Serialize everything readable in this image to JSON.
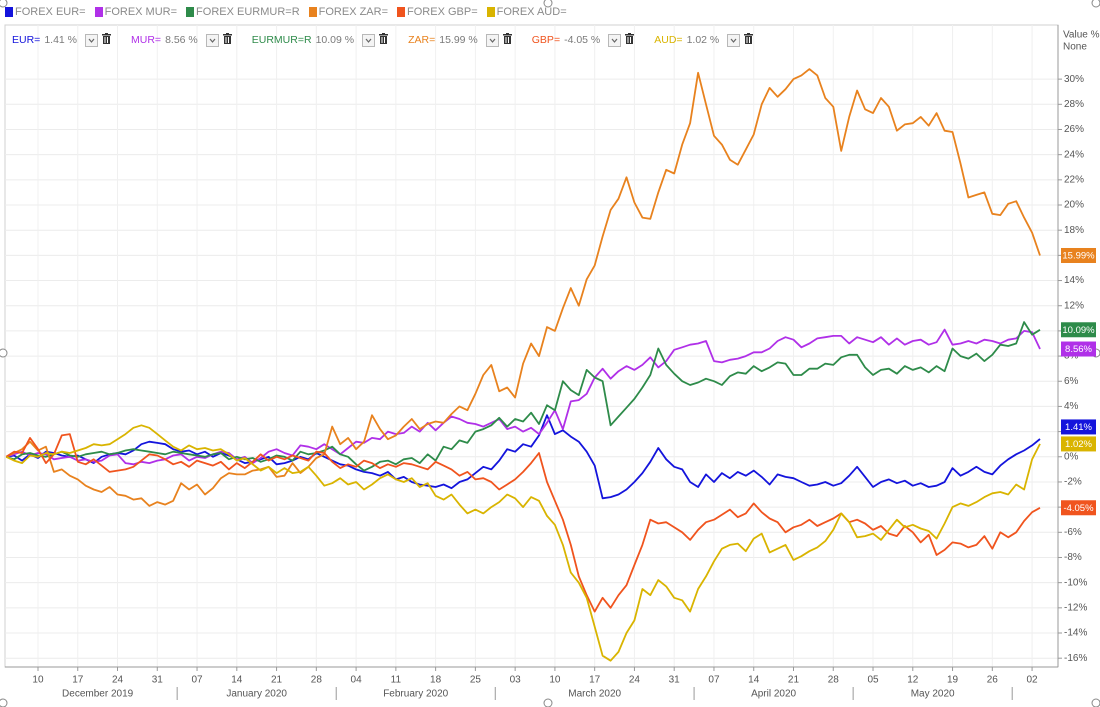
{
  "chart_data": {
    "type": "line",
    "y_axis_label": "Value %",
    "y_axis_sublabel": "None",
    "categories": [
      null,
      null,
      null,
      null,
      "10",
      null,
      null,
      null,
      null,
      "17",
      null,
      null,
      null,
      null,
      "24",
      null,
      null,
      null,
      null,
      "31",
      null,
      null,
      null,
      null,
      "07",
      null,
      null,
      null,
      null,
      "14",
      null,
      null,
      null,
      null,
      "21",
      null,
      null,
      null,
      null,
      "28",
      null,
      null,
      null,
      null,
      "04",
      null,
      null,
      null,
      null,
      "11",
      null,
      null,
      null,
      null,
      "18",
      null,
      null,
      null,
      null,
      "25",
      null,
      null,
      null,
      null,
      "03",
      null,
      null,
      null,
      null,
      "10",
      null,
      null,
      null,
      null,
      "17",
      null,
      null,
      null,
      null,
      "24",
      null,
      null,
      null,
      null,
      "31",
      null,
      null,
      null,
      null,
      "07",
      null,
      null,
      null,
      null,
      "14",
      null,
      null,
      null,
      null,
      "21",
      null,
      null,
      null,
      null,
      "28",
      null,
      null,
      null,
      null,
      "05",
      null,
      null,
      null,
      null,
      "12",
      null,
      null,
      null,
      null,
      "19",
      null,
      null,
      null,
      null,
      "26",
      null,
      null,
      null,
      null,
      "02",
      null
    ],
    "months": [
      "December 2019",
      "January 2020",
      "February 2020",
      "March 2020",
      "April 2020",
      "May 2020"
    ],
    "ylim": [
      -16.7,
      34.3
    ],
    "yticks": [
      {
        "value": -16,
        "label": "-16%"
      },
      {
        "value": -14,
        "label": "-14%"
      },
      {
        "value": -12,
        "label": "-12%"
      },
      {
        "value": -10,
        "label": "-10%"
      },
      {
        "value": -8,
        "label": "-8%"
      },
      {
        "value": -6,
        "label": "-6%"
      },
      {
        "value": -4,
        "label": "-4%"
      },
      {
        "value": -2,
        "label": "-2%"
      },
      {
        "value": 0,
        "label": "0%"
      },
      {
        "value": 2,
        "label": "2%"
      },
      {
        "value": 4,
        "label": "4%"
      },
      {
        "value": 6,
        "label": "6%"
      },
      {
        "value": 8,
        "label": "8%"
      },
      {
        "value": 10,
        "label": "10%"
      },
      {
        "value": 12,
        "label": "12%"
      },
      {
        "value": 14,
        "label": "14%"
      },
      {
        "value": 16,
        "label": "16%"
      },
      {
        "value": 18,
        "label": "18%"
      },
      {
        "value": 20,
        "label": "20%"
      },
      {
        "value": 22,
        "label": "22%"
      },
      {
        "value": 24,
        "label": "24%"
      },
      {
        "value": 26,
        "label": "26%"
      },
      {
        "value": 28,
        "label": "28%"
      },
      {
        "value": 30,
        "label": "30%"
      }
    ],
    "grid": true,
    "series": [
      {
        "name": "FOREX EUR=",
        "short_name": "EUR=",
        "change_label": "1.41 %",
        "value_label": "1.41%",
        "color": "#1414dc",
        "values": [
          0,
          0.1,
          -0.3,
          0.2,
          -0.1,
          0.4,
          0.3,
          0.1,
          0.0,
          0.1,
          -0.2,
          -0.5,
          0.0,
          0.2,
          0.3,
          0.2,
          0.5,
          1.0,
          1.2,
          1.1,
          1.0,
          0.6,
          0.4,
          0.5,
          0.2,
          0.4,
          0.0,
          0.3,
          0.1,
          -0.2,
          -0.5,
          -0.4,
          -0.2,
          0.0,
          -0.6,
          -0.5,
          -0.3,
          0.0,
          -0.2,
          0.3,
          0.0,
          -0.3,
          -0.6,
          -0.7,
          -1.0,
          -1.2,
          -1.3,
          -1.5,
          -1.2,
          -1.8,
          -1.6,
          -2.0,
          -2.2,
          -2.3,
          -2.4,
          -2.2,
          -2.5,
          -2.0,
          -1.8,
          -1.3,
          -0.8,
          -1.0,
          -0.3,
          0.6,
          0.4,
          1.0,
          0.8,
          1.7,
          3.3,
          1.8,
          2.1,
          1.6,
          1.2,
          0.4,
          -0.7,
          -3.3,
          -3.2,
          -3.0,
          -2.6,
          -2.0,
          -1.3,
          -0.4,
          0.7,
          -0.2,
          -0.8,
          -1.0,
          -2.0,
          -2.4,
          -1.4,
          -2.0,
          -1.3,
          -1.7,
          -1.2,
          -1.5,
          -1.1,
          -1.6,
          -2.2,
          -1.4,
          -1.6,
          -1.7,
          -2.0,
          -2.3,
          -2.2,
          -2.0,
          -2.3,
          -2.1,
          -1.5,
          -0.8,
          -1.6,
          -2.4,
          -2.0,
          -1.8,
          -2.1,
          -1.9,
          -2.3,
          -2.1,
          -2.4,
          -2.3,
          -2.0,
          -0.9,
          -1.5,
          -1.2,
          -0.8,
          -1.2,
          -1.4,
          -0.7,
          -0.2,
          0.2,
          0.5,
          0.9,
          1.41
        ]
      },
      {
        "name": "FOREX MUR=",
        "short_name": "MUR=",
        "change_label": "8.56 %",
        "value_label": "8.56%",
        "color": "#b030e8",
        "values": [
          0,
          0.2,
          0.4,
          0.1,
          0.3,
          0.2,
          -0.2,
          -0.1,
          0.0,
          -0.3,
          -0.2,
          -0.4,
          -0.3,
          0.1,
          0.2,
          -0.5,
          -0.6,
          -0.4,
          -0.5,
          -0.3,
          -0.2,
          0.1,
          0.2,
          -0.3,
          0.0,
          -0.1,
          0.2,
          0.4,
          0.3,
          -0.2,
          0.0,
          -0.5,
          -0.1,
          0.4,
          0.6,
          0.3,
          0.1,
          0.9,
          0.8,
          0.6,
          1.0,
          0.6,
          0.2,
          0.7,
          1.2,
          1.1,
          1.5,
          1.4,
          2.0,
          1.8,
          1.9,
          2.4,
          2.0,
          2.7,
          2.1,
          2.7,
          3.2,
          3.0,
          2.7,
          2.6,
          2.4,
          2.7,
          3.0,
          2.2,
          2.4,
          2.0,
          2.3,
          1.8,
          2.7,
          3.7,
          2.2,
          4.4,
          4.5,
          5.0,
          6.3,
          7.0,
          6.2,
          6.8,
          7.2,
          6.9,
          7.3,
          7.9,
          7.1,
          7.6,
          8.5,
          8.7,
          8.9,
          9.0,
          9.2,
          7.6,
          7.5,
          7.7,
          7.8,
          8.0,
          8.3,
          8.3,
          8.6,
          9.2,
          9.5,
          9.3,
          8.7,
          9.0,
          9.4,
          9.5,
          9.6,
          9.6,
          9.0,
          9.5,
          9.3,
          9.1,
          9.5,
          8.9,
          9.4,
          8.9,
          9.2,
          9.3,
          8.9,
          9.1,
          10.1,
          8.9,
          9.0,
          9.2,
          9.0,
          9.3,
          9.2,
          9.0,
          9.3,
          9.4,
          10.0,
          9.9,
          8.56
        ]
      },
      {
        "name": "FOREX EURMUR=R",
        "short_name": "EURMUR=R",
        "change_label": "10.09 %",
        "value_label": "10.09%",
        "color": "#2e8b4a",
        "values": [
          0,
          -0.2,
          0.2,
          0.3,
          0.1,
          0.0,
          0.2,
          0.4,
          0.1,
          0.0,
          0.2,
          0.3,
          0.4,
          0.2,
          0.3,
          0.5,
          0.6,
          0.5,
          0.4,
          0.3,
          0.2,
          0.4,
          0.3,
          0.2,
          0.1,
          0.0,
          0.2,
          0.3,
          -0.2,
          0.0,
          -0.2,
          -0.1,
          -0.4,
          -0.2,
          0.1,
          0.0,
          -0.3,
          0.4,
          0.2,
          0.3,
          0.5,
          0.8,
          0.2,
          0.0,
          -0.6,
          -1.1,
          -0.8,
          -0.4,
          -0.3,
          -0.6,
          -0.2,
          -0.1,
          -0.5,
          0.2,
          -0.3,
          0.8,
          0.6,
          1.3,
          1.1,
          2.0,
          2.2,
          2.5,
          3.1,
          2.4,
          3.0,
          2.8,
          3.5,
          2.6,
          4.1,
          3.7,
          6.0,
          5.3,
          4.9,
          6.9,
          6.3,
          6.0,
          2.5,
          3.2,
          3.9,
          4.6,
          5.5,
          6.5,
          8.6,
          7.3,
          6.6,
          6.0,
          5.7,
          5.9,
          6.2,
          6.0,
          5.7,
          6.4,
          6.7,
          6.6,
          7.2,
          6.8,
          7.1,
          7.5,
          7.4,
          6.5,
          6.5,
          7.0,
          7.0,
          7.4,
          7.3,
          7.9,
          8.1,
          8.1,
          7.1,
          6.5,
          6.9,
          7.0,
          6.6,
          7.2,
          6.9,
          7.1,
          6.7,
          7.2,
          6.8,
          8.6,
          8.0,
          7.8,
          8.2,
          7.6,
          8.1,
          8.9,
          8.8,
          9.0,
          10.7,
          9.7,
          10.09
        ]
      },
      {
        "name": "FOREX ZAR=",
        "short_name": "ZAR=",
        "change_label": "15.99 %",
        "value_label": "15.99%",
        "color": "#e8821e",
        "values": [
          0,
          0.3,
          0.6,
          1.2,
          0.5,
          0.8,
          -1.2,
          -1.0,
          -1.5,
          -1.8,
          -2.3,
          -2.6,
          -2.8,
          -2.4,
          -3.0,
          -3.1,
          -3.4,
          -3.3,
          -3.9,
          -3.6,
          -3.8,
          -3.5,
          -2.1,
          -2.6,
          -2.2,
          -3.0,
          -2.5,
          -1.7,
          -1.3,
          -1.4,
          -1.4,
          -1.1,
          -1.0,
          -0.8,
          -1.6,
          -1.5,
          -0.5,
          -1.3,
          -0.8,
          -0.1,
          0.2,
          2.4,
          1.0,
          1.5,
          0.6,
          1.2,
          3.3,
          2.2,
          1.4,
          1.7,
          2.4,
          3.0,
          2.2,
          2.6,
          2.8,
          2.7,
          3.4,
          4.0,
          3.7,
          5.0,
          6.5,
          7.3,
          5.2,
          5.5,
          4.7,
          7.4,
          9.0,
          8.0,
          10.3,
          10.0,
          11.8,
          13.4,
          12.0,
          14.1,
          15.2,
          17.5,
          19.6,
          20.5,
          22.2,
          20.2,
          19.0,
          18.9,
          21.0,
          22.8,
          22.5,
          24.8,
          26.5,
          30.5,
          28.0,
          25.5,
          24.8,
          23.6,
          23.2,
          24.4,
          25.6,
          28.0,
          29.3,
          28.6,
          29.2,
          30.0,
          30.3,
          30.8,
          30.3,
          28.5,
          27.8,
          24.3,
          27.0,
          29.1,
          27.6,
          27.3,
          28.5,
          27.8,
          25.9,
          26.4,
          26.5,
          27.0,
          26.3,
          27.3,
          25.9,
          25.8,
          23.3,
          20.6,
          20.8,
          21.0,
          19.3,
          19.2,
          20.1,
          20.3,
          19.0,
          17.8,
          15.99
        ]
      },
      {
        "name": "FOREX GBP=",
        "short_name": "GBP=",
        "change_label": "-4.05 %",
        "value_label": "-4.05%",
        "color": "#f0541e",
        "values": [
          0,
          0.4,
          0.3,
          1.5,
          0.6,
          -0.5,
          0.2,
          1.7,
          1.8,
          -0.4,
          -0.6,
          -0.2,
          -0.7,
          -1.2,
          -1.1,
          -1.0,
          -0.8,
          -0.3,
          0.2,
          0.1,
          -0.2,
          -0.6,
          -0.4,
          -0.8,
          -0.3,
          -0.5,
          -0.7,
          -0.4,
          -1.0,
          -0.5,
          -0.9,
          -0.4,
          0.2,
          -0.3,
          0.0,
          -0.2,
          0.1,
          -0.1,
          -0.3,
          0.4,
          0.3,
          -0.4,
          -0.9,
          -0.6,
          -0.8,
          -0.3,
          -0.5,
          -0.9,
          -0.6,
          -0.8,
          -0.5,
          -0.6,
          -0.8,
          -1.0,
          -0.4,
          -0.7,
          -1.0,
          -1.5,
          -1.2,
          -1.8,
          -1.7,
          -2.0,
          -2.6,
          -2.2,
          -1.8,
          -1.2,
          -0.5,
          0.3,
          -2.0,
          -3.5,
          -5.0,
          -7.0,
          -9.5,
          -11.0,
          -12.3,
          -11.2,
          -12.0,
          -11.0,
          -10.2,
          -8.6,
          -7.0,
          -5.0,
          -5.3,
          -5.2,
          -5.6,
          -6.0,
          -6.6,
          -5.8,
          -5.2,
          -5.0,
          -4.6,
          -4.2,
          -4.8,
          -4.5,
          -3.7,
          -4.4,
          -4.9,
          -5.2,
          -6.0,
          -5.6,
          -5.4,
          -5.0,
          -5.5,
          -5.2,
          -4.9,
          -4.5,
          -5.2,
          -5.0,
          -5.3,
          -5.8,
          -5.5,
          -6.1,
          -6.3,
          -5.5,
          -6.0,
          -6.8,
          -6.2,
          -7.8,
          -7.4,
          -6.8,
          -6.9,
          -7.2,
          -7.0,
          -6.3,
          -7.3,
          -6.0,
          -6.4,
          -6.0,
          -5.1,
          -4.4,
          -4.05
        ]
      },
      {
        "name": "FOREX AUD=",
        "short_name": "AUD=",
        "change_label": "1.02 %",
        "value_label": "1.02%",
        "color": "#d9b400",
        "values": [
          0,
          -0.3,
          -0.5,
          0.1,
          0.0,
          0.3,
          0.2,
          0.4,
          0.3,
          0.5,
          0.7,
          1.0,
          0.9,
          1.0,
          1.4,
          1.8,
          2.3,
          2.5,
          2.3,
          1.8,
          1.3,
          0.8,
          0.5,
          0.9,
          0.6,
          0.7,
          0.5,
          0.6,
          0.2,
          -0.3,
          -0.1,
          -0.6,
          -1.1,
          -0.8,
          -1.3,
          -0.9,
          -1.3,
          -1.2,
          -0.8,
          -1.5,
          -2.3,
          -2.1,
          -1.7,
          -2.2,
          -2.0,
          -2.6,
          -2.2,
          -1.7,
          -1.4,
          -1.8,
          -2.0,
          -1.7,
          -2.4,
          -2.1,
          -3.1,
          -3.4,
          -3.0,
          -3.8,
          -4.5,
          -4.2,
          -4.5,
          -4.0,
          -3.6,
          -3.0,
          -3.3,
          -4.0,
          -3.2,
          -3.5,
          -4.7,
          -5.4,
          -7.0,
          -9.2,
          -10.0,
          -11.2,
          -13.5,
          -15.8,
          -16.2,
          -15.5,
          -14.0,
          -13.0,
          -10.5,
          -11.0,
          -9.8,
          -10.3,
          -11.2,
          -11.4,
          -12.3,
          -10.5,
          -9.5,
          -8.3,
          -7.3,
          -7.0,
          -6.9,
          -7.5,
          -6.5,
          -6.1,
          -7.6,
          -7.3,
          -7.0,
          -8.2,
          -7.9,
          -7.5,
          -7.2,
          -6.7,
          -5.8,
          -4.5,
          -5.2,
          -6.4,
          -6.3,
          -6.1,
          -6.6,
          -5.8,
          -5.0,
          -5.6,
          -5.4,
          -5.7,
          -5.9,
          -6.5,
          -5.3,
          -4.0,
          -3.7,
          -3.9,
          -3.6,
          -3.2,
          -2.9,
          -2.8,
          -3.0,
          -2.2,
          -2.6,
          -0.2,
          1.02
        ]
      }
    ]
  }
}
